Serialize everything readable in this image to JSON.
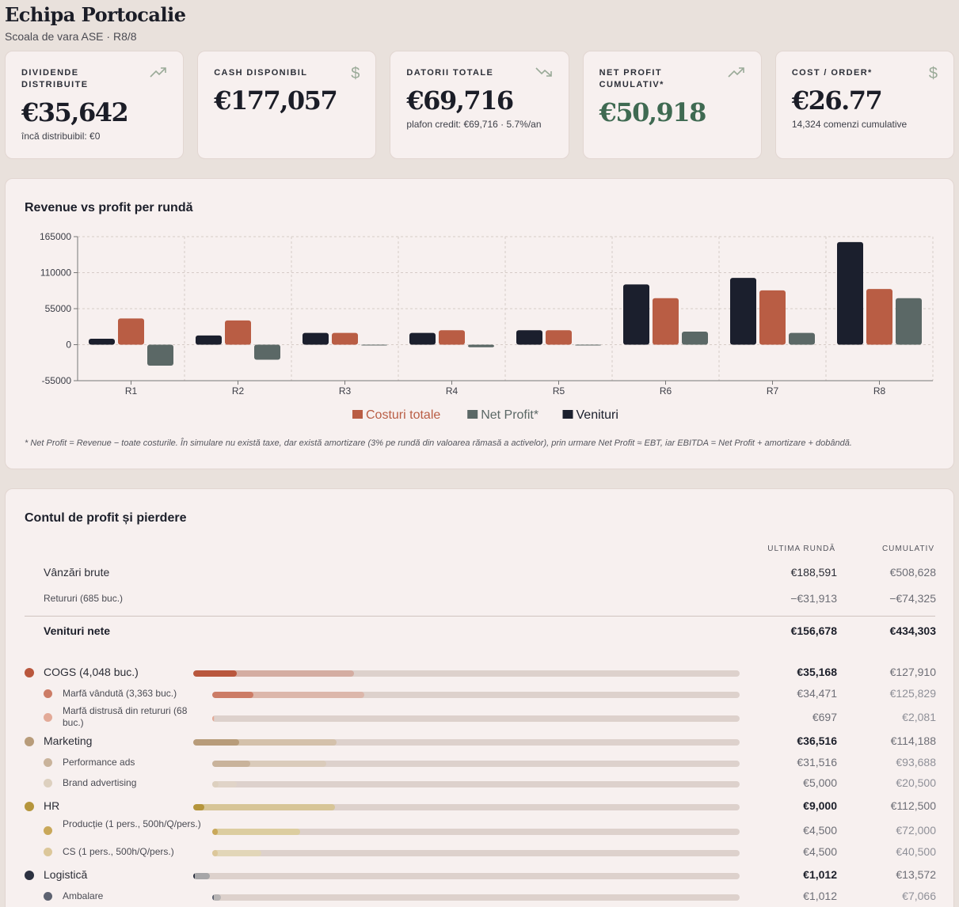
{
  "header": {
    "title": "Echipa Portocalie",
    "subtitle": "Scoala de vara ASE · R8/8"
  },
  "kpis": [
    {
      "label": "DIVIDENDE DISTRIBUITE",
      "icon": "trending-up-icon",
      "value": "€35,642",
      "note": "încă distribuibil: €0",
      "value_color": "#1b1d27"
    },
    {
      "label": "CASH DISPONIBIL",
      "icon": "dollar-icon",
      "value": "€177,057",
      "note": "",
      "value_color": "#1b1d27"
    },
    {
      "label": "DATORII TOTALE",
      "icon": "trending-down-icon",
      "value": "€69,716",
      "note": "plafon credit: €69,716 · 5.7%/an",
      "value_color": "#1b1d27"
    },
    {
      "label": "NET PROFIT CUMULATIV*",
      "icon": "trending-up-icon",
      "value": "€50,918",
      "note": "",
      "value_color": "#3f6a52"
    },
    {
      "label": "COST / ORDER*",
      "icon": "dollar-icon",
      "value": "€26.77",
      "note": "14,324 comenzi cumulative",
      "value_color": "#1b1d27"
    }
  ],
  "chart_card": {
    "title": "Revenue vs profit per rundă",
    "footnote": "* Net Profit = Revenue − toate costurile. În simulare nu există taxe, dar există amortizare (3% pe rundă din valoarea rămasă a activelor), prin urmare Net Profit ≈ EBT, iar EBITDA = Net Profit + amortizare + dobândă."
  },
  "chart_data": {
    "type": "bar",
    "categories": [
      "R1",
      "R2",
      "R3",
      "R4",
      "R5",
      "R6",
      "R7",
      "R8"
    ],
    "series": [
      {
        "name": "Venituri",
        "color": "#1b1f2d",
        "values": [
          9000,
          14000,
          18000,
          18000,
          22000,
          92000,
          102000,
          156678
        ]
      },
      {
        "name": "Costuri totale",
        "color": "#b95d44",
        "values": [
          40000,
          37000,
          18000,
          22000,
          22000,
          71000,
          83000,
          85000
        ]
      },
      {
        "name": "Net Profit*",
        "color": "#5b6866",
        "values": [
          -32000,
          -23000,
          -1000,
          -4000,
          -1000,
          20000,
          18000,
          71000
        ]
      }
    ],
    "legend_order": [
      "Costuri totale",
      "Net Profit*",
      "Venituri"
    ],
    "legend_position": "bottom-center",
    "ylim": [
      -55000,
      165000
    ],
    "yticks": [
      -55000,
      0,
      55000,
      110000,
      165000
    ],
    "ytick_labels": [
      "-55000",
      "0",
      "55000",
      "110000",
      "165000"
    ],
    "grid": true
  },
  "pl": {
    "title": "Contul de profit și pierdere",
    "col_last": "ULTIMA RUNDĂ",
    "col_cum": "CUMULATIV",
    "gross_sales": {
      "label": "Vânzări brute",
      "last": "€188,591",
      "cum": "€508,628"
    },
    "returns": {
      "label": "Retururi (685 buc.)",
      "last": "−€31,913",
      "cum": "−€74,325"
    },
    "net_revenue": {
      "label": "Venituri nete",
      "last": "€156,678",
      "cum": "€434,303"
    },
    "categories": [
      {
        "label": "COGS (4,048 buc.)",
        "last": "€35,168",
        "cum": "€127,910",
        "color": "#b9573d",
        "light": "#d4ada2",
        "last_frac": 0.08,
        "cum_frac": 0.294,
        "subs": [
          {
            "label": "Marfă vândută (3,363 buc.)",
            "last": "€34,471",
            "cum": "€125,829",
            "color": "#cc7c66",
            "light": "#dcb7ab",
            "last_frac": 0.078,
            "cum_frac": 0.288
          },
          {
            "label": "Marfă distrusă din retururi (68 buc.)",
            "last": "€697",
            "cum": "€2,081",
            "color": "#e3aa98",
            "light": "#e0c7bf",
            "last_frac": 0.002,
            "cum_frac": 0.005
          }
        ]
      },
      {
        "label": "Marketing",
        "last": "€36,516",
        "cum": "€114,188",
        "color": "#b89c7a",
        "light": "#d4c1ab",
        "last_frac": 0.084,
        "cum_frac": 0.263,
        "subs": [
          {
            "label": "Performance ads",
            "last": "€31,516",
            "cum": "€93,688",
            "color": "#c9b39b",
            "light": "#dacbbb",
            "last_frac": 0.072,
            "cum_frac": 0.216
          },
          {
            "label": "Brand advertising",
            "last": "€5,000",
            "cum": "€20,500",
            "color": "#ddd0bf",
            "light": "#e0d4c8",
            "last_frac": 0.012,
            "cum_frac": 0.047
          }
        ]
      },
      {
        "label": "HR",
        "last": "€9,000",
        "cum": "€112,500",
        "color": "#b5953c",
        "light": "#d7c597",
        "last_frac": 0.02,
        "cum_frac": 0.259,
        "subs": [
          {
            "label": "Producție (1 pers., 500h/Q/pers.)",
            "last": "€4,500",
            "cum": "€72,000",
            "color": "#c9a85a",
            "light": "#dccda0",
            "last_frac": 0.01,
            "cum_frac": 0.166
          },
          {
            "label": "CS (1 pers., 500h/Q/pers.)",
            "last": "€4,500",
            "cum": "€40,500",
            "color": "#dcc79a",
            "light": "#e2d6b8",
            "last_frac": 0.01,
            "cum_frac": 0.093
          }
        ]
      },
      {
        "label": "Logistică",
        "last": "€1,012",
        "cum": "€13,572",
        "color": "#2c3140",
        "light": "#a7a6a8",
        "last_frac": 0.002,
        "cum_frac": 0.031,
        "subs": [
          {
            "label": "Ambalare",
            "last": "€1,012",
            "cum": "€7,066",
            "color": "#5d6270",
            "light": "#b7b4b4",
            "last_frac": 0.002,
            "cum_frac": 0.016
          }
        ]
      }
    ]
  }
}
